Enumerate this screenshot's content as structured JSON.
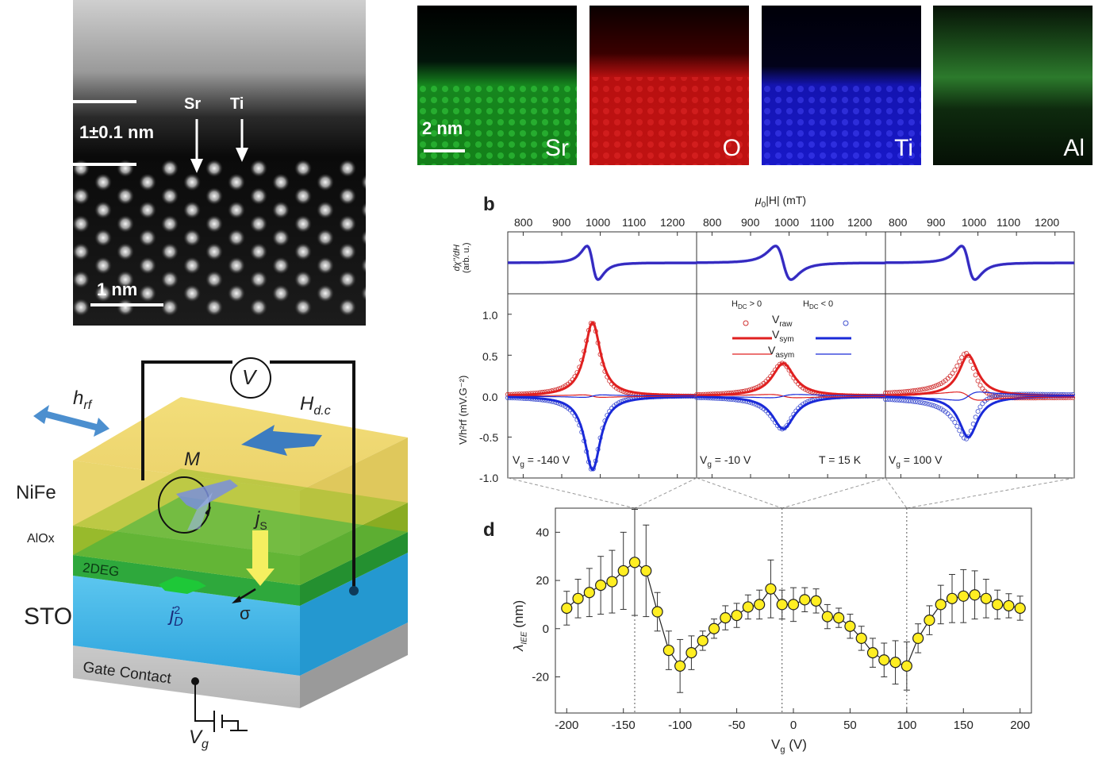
{
  "stem": {
    "thickness_label": "1±0.1 nm",
    "sr_label": "Sr",
    "ti_label": "Ti",
    "scale_label": "1 nm"
  },
  "eds": {
    "scale_label": "2 nm",
    "maps": [
      {
        "element": "Sr",
        "color": "#1fbf2a"
      },
      {
        "element": "O",
        "color": "#d41414"
      },
      {
        "element": "Ti",
        "color": "#1a1ae0"
      },
      {
        "element": "Al",
        "color": "#2a7a2a"
      }
    ]
  },
  "schematic": {
    "voltmeter": "V",
    "hrf_main": "h",
    "hrf_sub": "rf",
    "hdc_main": "H",
    "hdc_sub": "d.c",
    "m_label": "M",
    "js_main": "j",
    "js_sub": "S",
    "jc_main": "j",
    "jc_sup": "2",
    "jc_sub": "D",
    "sigma": "σ",
    "layers": {
      "nife": "NiFe",
      "alox": "AlOx",
      "twodeg": "2DEG",
      "sto": "STO",
      "gate": "Gate Contact"
    },
    "vg_main": "V",
    "vg_sub": "g"
  },
  "panel_b": {
    "panel_letter": "b",
    "top_axis_label_pre": "μ",
    "top_axis_label_sub": "0",
    "top_axis_label_mid": "|H| (mT)",
    "top_ticks": [
      [
        "800",
        "900",
        "1000",
        "1100",
        "1200"
      ],
      [
        "800",
        "900",
        "1000",
        "1100",
        "1200"
      ],
      [
        "800",
        "900",
        "1000",
        "1100",
        "1200"
      ]
    ],
    "upper_ylabel": "dχ''/dH",
    "upper_yunit": "(arb. u.)",
    "lower_ylabel": "V/h²rf (mV.G⁻²)",
    "lower_yticks": [
      "1.0",
      "0.5",
      "0.0",
      "-0.5",
      "-1.0"
    ],
    "legend": {
      "hdc_pos": "H",
      "hdc_pos_sub": "DC",
      "hdc_pos_rest": " > 0",
      "hdc_neg": "H",
      "hdc_neg_sub": "DC",
      "hdc_neg_rest": " < 0",
      "vraw": "V",
      "vraw_sub": "raw",
      "vsym": "V",
      "vsym_sub": "sym",
      "vasym": "V",
      "vasym_sub": "asym"
    },
    "annotations": [
      {
        "main": "V",
        "sub": "g",
        "rest": " = -140 V"
      },
      {
        "main": "V",
        "sub": "g",
        "rest": " = -10 V"
      },
      {
        "main": "V",
        "sub": "g",
        "rest": " = 100 V"
      }
    ],
    "temperature": "T = 15 K"
  },
  "chart_data": {
    "type": "scatter",
    "panel_letter": "d",
    "xlabel": "V",
    "xlabel_sub": "g",
    "xlabel_unit": " (V)",
    "ylabel": "λ",
    "ylabel_sub": "IEE",
    "ylabel_unit": " (nm)",
    "xlim": [
      -210,
      210
    ],
    "ylim": [
      -35,
      50
    ],
    "xticks": [
      -200,
      -150,
      -100,
      -50,
      0,
      50,
      100,
      150,
      200
    ],
    "yticks": [
      -20,
      0,
      20,
      40
    ],
    "marker_color": "#ffee22",
    "dashed_lines_x": [
      -140,
      -10,
      100
    ],
    "points": [
      {
        "x": -200,
        "y": 8.5,
        "err": 7
      },
      {
        "x": -190,
        "y": 12.5,
        "err": 8
      },
      {
        "x": -180,
        "y": 15,
        "err": 10
      },
      {
        "x": -170,
        "y": 18,
        "err": 12
      },
      {
        "x": -160,
        "y": 19.5,
        "err": 13
      },
      {
        "x": -150,
        "y": 24,
        "err": 16
      },
      {
        "x": -140,
        "y": 27.5,
        "err": 22
      },
      {
        "x": -130,
        "y": 24,
        "err": 19
      },
      {
        "x": -120,
        "y": 7,
        "err": 8
      },
      {
        "x": -110,
        "y": -9,
        "err": 8
      },
      {
        "x": -100,
        "y": -15.5,
        "err": 11
      },
      {
        "x": -90,
        "y": -10,
        "err": 7
      },
      {
        "x": -80,
        "y": -5,
        "err": 4
      },
      {
        "x": -70,
        "y": 0,
        "err": 4
      },
      {
        "x": -60,
        "y": 4.5,
        "err": 5
      },
      {
        "x": -50,
        "y": 5.5,
        "err": 5
      },
      {
        "x": -40,
        "y": 9,
        "err": 5
      },
      {
        "x": -30,
        "y": 10,
        "err": 6
      },
      {
        "x": -20,
        "y": 16.5,
        "err": 12
      },
      {
        "x": -10,
        "y": 10,
        "err": 6
      },
      {
        "x": 0,
        "y": 10,
        "err": 7
      },
      {
        "x": 10,
        "y": 12,
        "err": 5
      },
      {
        "x": 20,
        "y": 11.5,
        "err": 5
      },
      {
        "x": 30,
        "y": 5,
        "err": 5
      },
      {
        "x": 40,
        "y": 4.5,
        "err": 4
      },
      {
        "x": 50,
        "y": 1,
        "err": 5
      },
      {
        "x": 60,
        "y": -4,
        "err": 5
      },
      {
        "x": 70,
        "y": -10,
        "err": 6
      },
      {
        "x": 80,
        "y": -13,
        "err": 7
      },
      {
        "x": 90,
        "y": -14,
        "err": 9
      },
      {
        "x": 100,
        "y": -15.5,
        "err": 10
      },
      {
        "x": 110,
        "y": -4,
        "err": 6
      },
      {
        "x": 120,
        "y": 3.5,
        "err": 6
      },
      {
        "x": 130,
        "y": 10,
        "err": 8
      },
      {
        "x": 140,
        "y": 12.5,
        "err": 10
      },
      {
        "x": 150,
        "y": 13.5,
        "err": 11
      },
      {
        "x": 160,
        "y": 14,
        "err": 10
      },
      {
        "x": 170,
        "y": 12.5,
        "err": 8
      },
      {
        "x": 180,
        "y": 10,
        "err": 6
      },
      {
        "x": 190,
        "y": 9.5,
        "err": 5
      },
      {
        "x": 200,
        "y": 8.5,
        "err": 5
      }
    ]
  },
  "fmr_data": {
    "upper_ylim": [
      -1.2,
      1.2
    ],
    "lower_ylim": [
      -1.0,
      1.25
    ],
    "field_range": [
      760,
      1250
    ],
    "panels": [
      {
        "res_field": 980,
        "width": 25,
        "sym_amp": 0.9,
        "asym_amp": 0.03,
        "raw_dev": 0.05
      },
      {
        "res_field": 985,
        "width": 35,
        "sym_amp": 0.4,
        "asym_amp": 0.04,
        "raw_dev": 0.02
      },
      {
        "res_field": 975,
        "width": 30,
        "sym_amp": 0.5,
        "asym_amp": 0.1,
        "raw_dev": 0.12
      }
    ]
  }
}
